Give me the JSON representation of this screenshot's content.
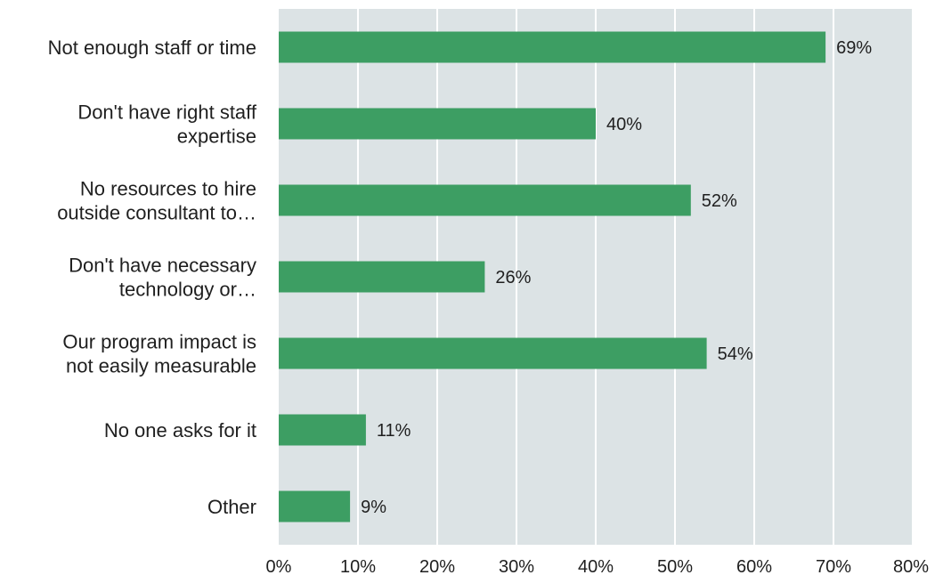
{
  "chart_data": {
    "type": "bar",
    "orientation": "horizontal",
    "categories": [
      [
        "Not enough staff or time"
      ],
      [
        "Don't have right staff",
        "expertise"
      ],
      [
        "No resources to hire",
        "outside consultant to…"
      ],
      [
        "Don't have necessary",
        "technology or…"
      ],
      [
        "Our program impact is",
        "not easily measurable"
      ],
      [
        "No one asks for it"
      ],
      [
        "Other"
      ]
    ],
    "values": [
      69,
      40,
      52,
      26,
      54,
      11,
      9
    ],
    "data_labels": [
      "69%",
      "40%",
      "52%",
      "26%",
      "54%",
      "11%",
      "9%"
    ],
    "xlim": [
      0,
      80
    ],
    "ticks": [
      0,
      10,
      20,
      30,
      40,
      50,
      60,
      70,
      80
    ],
    "tick_labels": [
      "0%",
      "10%",
      "20%",
      "30%",
      "40%",
      "50%",
      "60%",
      "70%",
      "80%"
    ],
    "grid": true,
    "colors": {
      "bar": "#3d9e63",
      "plot_background": "#dce3e5",
      "gridline": "#ffffff"
    }
  }
}
